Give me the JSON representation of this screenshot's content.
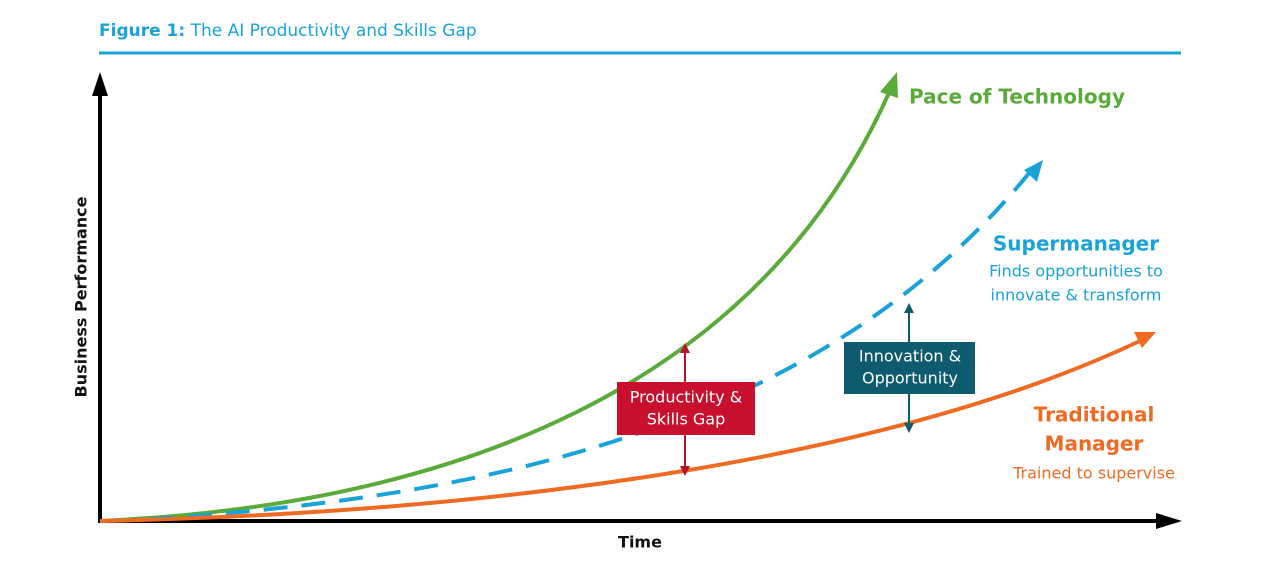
{
  "header": {
    "figure_label": "Figure 1:",
    "title": "The AI Productivity and Skills Gap"
  },
  "axes": {
    "y_label": "Business Performance",
    "x_label": "Time"
  },
  "curves": [
    {
      "name": "Pace of Technology",
      "description": []
    },
    {
      "name": "Supermanager",
      "description": [
        "Finds opportunities to",
        "innovate & transform"
      ]
    },
    {
      "name": [
        "Traditional",
        "Manager"
      ],
      "description": [
        "Trained to supervise"
      ]
    }
  ],
  "gaps": [
    {
      "label": [
        "Productivity &",
        "Skills Gap"
      ]
    },
    {
      "label": [
        "Innovation &",
        "Opportunity"
      ]
    }
  ]
}
